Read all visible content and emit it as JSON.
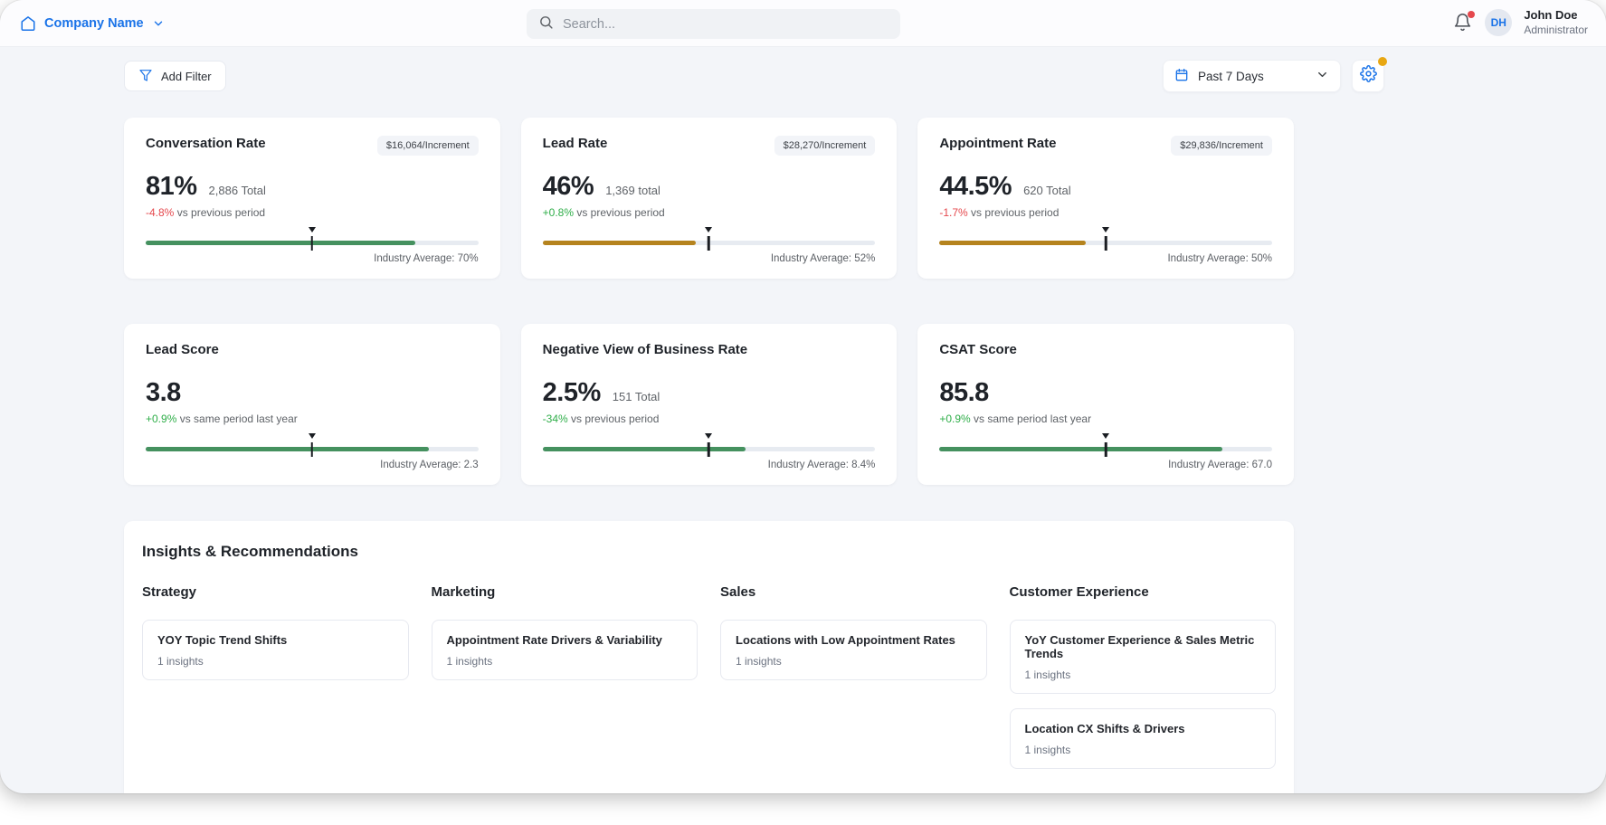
{
  "topbar": {
    "brand": "Company Name",
    "search_placeholder": "Search...",
    "user": {
      "initials": "DH",
      "name": "John Doe",
      "role": "Administrator"
    }
  },
  "filters": {
    "add_filter_label": "Add Filter",
    "date_range_label": "Past 7 Days"
  },
  "colors": {
    "accent_blue": "#1a73e8",
    "bar_green": "#45915f",
    "bar_gold": "#b5831e",
    "delta_positive": "#2fae49",
    "delta_negative": "#e5484d",
    "notification_red": "#e5484d",
    "settings_badge_orange": "#e8a713",
    "marker_black": "#1a1d22"
  },
  "metrics": [
    {
      "title": "Conversation Rate",
      "badge": "$16,064/Increment",
      "value": "81%",
      "total": "2,886 Total",
      "delta": "-4.8%",
      "delta_sentiment": "negative",
      "delta_suffix": "vs previous period",
      "bar_color": "bar_green",
      "fill_pct": 81,
      "marker_pct": 50,
      "industry_label": "Industry Average: 70%"
    },
    {
      "title": "Lead Rate",
      "badge": "$28,270/Increment",
      "value": "46%",
      "total": "1,369 total",
      "delta": "+0.8%",
      "delta_sentiment": "positive",
      "delta_suffix": "vs previous period",
      "bar_color": "bar_gold",
      "fill_pct": 46,
      "marker_pct": 50,
      "industry_label": "Industry Average: 52%"
    },
    {
      "title": "Appointment Rate",
      "badge": "$29,836/Increment",
      "value": "44.5%",
      "total": "620 Total",
      "delta": "-1.7%",
      "delta_sentiment": "negative",
      "delta_suffix": "vs previous period",
      "bar_color": "bar_gold",
      "fill_pct": 44,
      "marker_pct": 50,
      "industry_label": "Industry Average: 50%"
    },
    {
      "title": "Lead Score",
      "badge": null,
      "value": "3.8",
      "total": null,
      "delta": "+0.9%",
      "delta_sentiment": "positive",
      "delta_suffix": "vs same period last year",
      "bar_color": "bar_green",
      "fill_pct": 85,
      "marker_pct": 50,
      "industry_label": "Industry Average: 2.3"
    },
    {
      "title": "Negative View of Business Rate",
      "badge": null,
      "value": "2.5%",
      "total": "151 Total",
      "delta": "-34%",
      "delta_sentiment": "positive",
      "delta_suffix": "vs previous period",
      "bar_color": "bar_green",
      "fill_pct": 61,
      "marker_pct": 50,
      "industry_label": "Industry Average: 8.4%"
    },
    {
      "title": "CSAT Score",
      "badge": null,
      "value": "85.8",
      "total": null,
      "delta": "+0.9%",
      "delta_sentiment": "positive",
      "delta_suffix": "vs same period last year",
      "bar_color": "bar_green",
      "fill_pct": 85,
      "marker_pct": 50,
      "industry_label": "Industry Average: 67.0"
    }
  ],
  "insights": {
    "title": "Insights & Recommendations",
    "columns": [
      {
        "category": "Strategy",
        "items": [
          {
            "title": "YOY Topic Trend Shifts",
            "count": "1 insights"
          }
        ]
      },
      {
        "category": "Marketing",
        "items": [
          {
            "title": "Appointment Rate Drivers & Variability",
            "count": "1 insights"
          }
        ]
      },
      {
        "category": "Sales",
        "items": [
          {
            "title": "Locations with Low Appointment Rates",
            "count": "1 insights"
          }
        ]
      },
      {
        "category": "Customer Experience",
        "items": [
          {
            "title": "YoY Customer Experience & Sales Metric Trends",
            "count": "1 insights"
          },
          {
            "title": "Location CX Shifts & Drivers",
            "count": "1 insights"
          }
        ]
      }
    ]
  }
}
